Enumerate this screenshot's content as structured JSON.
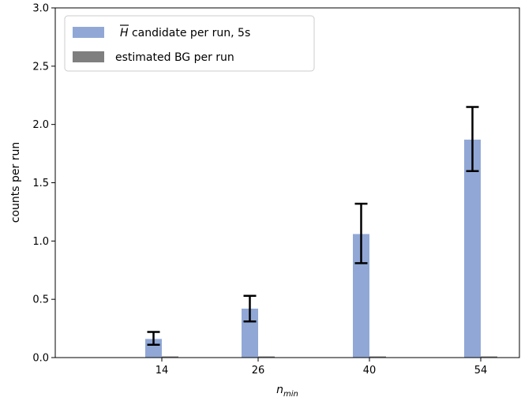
{
  "chart_data": {
    "type": "bar",
    "categories": [
      "14",
      "26",
      "40",
      "54"
    ],
    "xlabel": "n",
    "xlabel_subscript": "min",
    "ylabel": "counts per run",
    "ylim": [
      0,
      3.0
    ],
    "yticks": [
      "0.0",
      "0.5",
      "1.0",
      "1.5",
      "2.0",
      "2.5",
      "3.0"
    ],
    "legend_placement": "top-left",
    "series": [
      {
        "name": "candidate per run, 5s",
        "name_symbol": "H",
        "color": "#91a8d6",
        "values": [
          0.16,
          0.42,
          1.06,
          1.87
        ],
        "error_low": [
          0.11,
          0.31,
          0.81,
          1.6
        ],
        "error_high": [
          0.22,
          0.53,
          1.32,
          2.15
        ]
      },
      {
        "name": "estimated BG per run",
        "color": "#7f7f7f",
        "values": [
          0.008,
          0.008,
          0.008,
          0.008
        ]
      }
    ]
  }
}
